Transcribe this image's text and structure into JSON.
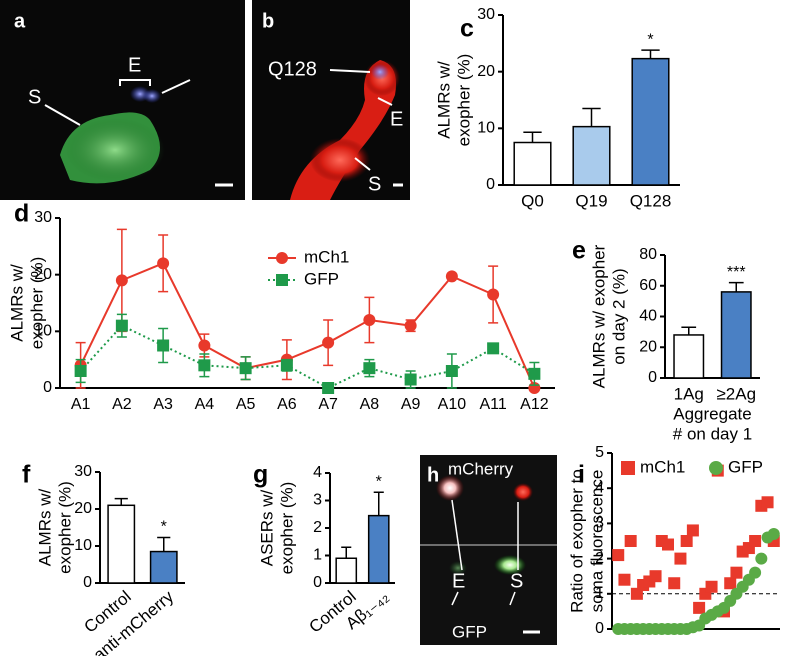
{
  "images": [
    {
      "letter": "a",
      "labels": [
        "S",
        "E"
      ]
    },
    {
      "letter": "b",
      "labels": [
        "Q128",
        "E",
        "S"
      ]
    },
    {
      "letter": "h",
      "labels": [
        "mCherry",
        "E",
        "S",
        "GFP"
      ]
    }
  ],
  "chart_data": [
    {
      "type": "bar",
      "letter": "c",
      "ylabel": [
        "ALMRs w/",
        "exopher (%)"
      ],
      "categories": [
        "Q0",
        "Q19",
        "Q128"
      ],
      "values": [
        7.5,
        10.3,
        22.3
      ],
      "errors": [
        1.8,
        3.2,
        1.5
      ],
      "colors": [
        "#ffffff",
        "#a9cbec",
        "#4a80c4"
      ],
      "annotations": [
        null,
        null,
        "*"
      ],
      "ylim": [
        0,
        30
      ],
      "yticks": [
        0,
        10,
        20,
        30
      ]
    },
    {
      "type": "line",
      "letter": "d",
      "ylabel": [
        "ALMRs w/",
        "exopher (%)"
      ],
      "categories": [
        "A1",
        "A2",
        "A3",
        "A4",
        "A5",
        "A6",
        "A7",
        "A8",
        "A9",
        "A10",
        "A11",
        "A12"
      ],
      "series": [
        {
          "name": "mCh1",
          "color": "#e8392b",
          "style": "solid",
          "marker": "circle",
          "values": [
            4,
            19,
            22,
            7.5,
            3.5,
            5,
            8,
            12,
            11,
            19.7,
            16.5,
            0
          ],
          "errors": [
            4,
            9,
            5,
            2,
            2,
            3.5,
            4,
            4,
            1,
            0,
            5,
            0
          ]
        },
        {
          "name": "GFP",
          "color": "#1f9a4a",
          "style": "dotted",
          "marker": "square",
          "values": [
            3,
            11,
            7.5,
            4,
            3.5,
            4,
            0,
            3.5,
            1.5,
            3,
            7,
            2.5
          ],
          "errors": [
            2,
            2,
            3,
            2,
            2,
            1,
            0.8,
            1.5,
            1.5,
            3,
            0,
            2
          ]
        }
      ],
      "ylim": [
        0,
        30
      ],
      "yticks": [
        0,
        10,
        20,
        30
      ]
    },
    {
      "type": "bar",
      "letter": "e",
      "ylabel": [
        "ALMRs w/ exopher",
        "on day 2 (%)"
      ],
      "xlabel": [
        "Aggregate",
        "# on day 1"
      ],
      "categories": [
        "1Ag",
        "≥2Ag"
      ],
      "values": [
        28,
        56
      ],
      "errors": [
        5,
        6
      ],
      "colors": [
        "#ffffff",
        "#4a80c4"
      ],
      "annotations": [
        null,
        "***"
      ],
      "ylim": [
        0,
        80
      ],
      "yticks": [
        0,
        20,
        40,
        60,
        80
      ]
    },
    {
      "type": "bar",
      "letter": "f",
      "ylabel": [
        "ALMRs w/",
        "exopher (%)"
      ],
      "rotate_labels": true,
      "categories": [
        "Control",
        "anti-mCherry"
      ],
      "values": [
        21,
        8.5
      ],
      "errors": [
        1.8,
        3.8
      ],
      "colors": [
        "#ffffff",
        "#4a80c4"
      ],
      "annotations": [
        null,
        "*"
      ],
      "ylim": [
        0,
        30
      ],
      "yticks": [
        0,
        10,
        20,
        30
      ]
    },
    {
      "type": "bar",
      "letter": "g",
      "ylabel": [
        "ASERs w/",
        "exopher (%)"
      ],
      "rotate_labels": true,
      "categories": [
        "Control",
        "Aβ₁₋₄₂"
      ],
      "values": [
        0.9,
        2.45
      ],
      "errors": [
        0.4,
        0.85
      ],
      "colors": [
        "#ffffff",
        "#4a80c4"
      ],
      "annotations": [
        null,
        "*"
      ],
      "ylim": [
        0,
        4
      ],
      "yticks": [
        0,
        1,
        2,
        3,
        4
      ]
    },
    {
      "type": "scatter",
      "letter": "i",
      "ylabel": [
        "Ratio of exopher to",
        "soma fluorescence"
      ],
      "hline": 1,
      "series": [
        {
          "name": "mCh1",
          "color": "#e8392b",
          "marker": "square",
          "x": [
            1,
            2,
            3,
            4,
            5,
            6,
            7,
            8,
            9,
            10,
            11,
            12,
            13,
            14,
            15,
            16,
            17,
            18,
            19,
            20,
            21,
            22,
            23,
            24,
            25,
            26
          ],
          "values": [
            2.1,
            1.4,
            2.5,
            1.0,
            1.25,
            1.35,
            1.5,
            2.5,
            2.4,
            1.3,
            2.0,
            2.5,
            2.8,
            0.6,
            1.0,
            1.2,
            4.5,
            0.5,
            1.3,
            1.6,
            2.2,
            2.3,
            2.5,
            3.5,
            3.6,
            2.5
          ]
        },
        {
          "name": "GFP",
          "color": "#5aaa46",
          "marker": "circle",
          "x": [
            1,
            2,
            3,
            4,
            5,
            6,
            7,
            8,
            9,
            10,
            11,
            12,
            13,
            14,
            15,
            16,
            17,
            18,
            19,
            20,
            21,
            22,
            23,
            24,
            25,
            26
          ],
          "values": [
            0,
            0,
            0,
            0,
            0,
            0,
            0,
            0,
            0,
            0,
            0,
            0,
            0.05,
            0.1,
            0.3,
            0.4,
            0.5,
            0.6,
            0.8,
            1.0,
            1.2,
            1.4,
            1.6,
            2.0,
            2.6,
            2.7
          ]
        }
      ],
      "xlim": [
        0,
        27
      ],
      "ylim": [
        0,
        5
      ],
      "yticks": [
        0,
        1,
        2,
        3,
        4,
        5
      ]
    }
  ]
}
